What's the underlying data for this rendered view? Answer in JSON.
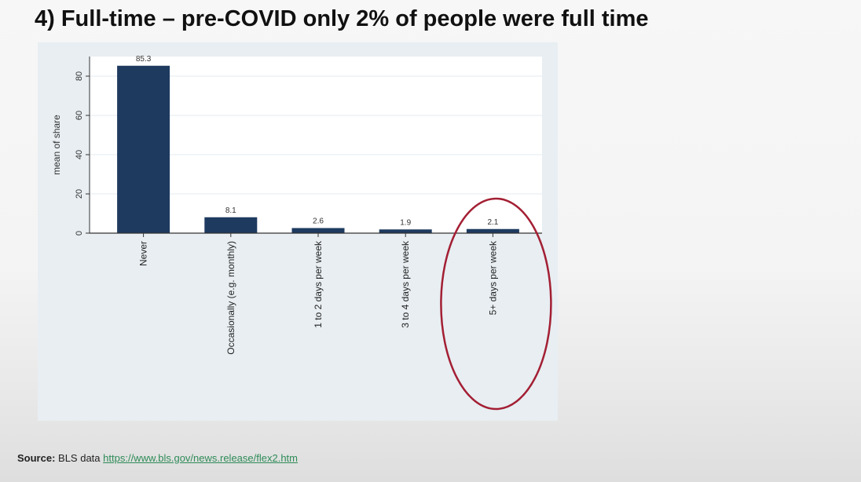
{
  "slide": {
    "title": "4) Full-time – pre-COVID only 2% of people were full time"
  },
  "source": {
    "label": "Source:",
    "text": "BLS data",
    "link": "https://www.bls.gov/news.release/flex2.htm"
  },
  "chart_data": {
    "type": "bar",
    "categories": [
      "Never",
      "Occasionally (e.g. monthly)",
      "1 to 2 days per week",
      "3 to 4 days per week",
      "5+ days per week"
    ],
    "values": [
      85.3,
      8.1,
      2.6,
      1.9,
      2.1
    ],
    "value_labels": [
      "85.3",
      "8.1",
      "2.6",
      "1.9",
      "2.1"
    ],
    "title": "",
    "xlabel": "",
    "ylabel": "mean of share",
    "ylim": [
      0,
      90
    ],
    "yticks": [
      0,
      20,
      40,
      60,
      80
    ],
    "grid": true,
    "legend": "none",
    "highlight_category": "5+ days per week",
    "colors": {
      "bar": "#1e3a5f",
      "highlight_circle": "#a31f34",
      "plot_bg": "#ffffff",
      "outer_bg": "#e8eef2",
      "grid": "#e6ebef"
    }
  }
}
